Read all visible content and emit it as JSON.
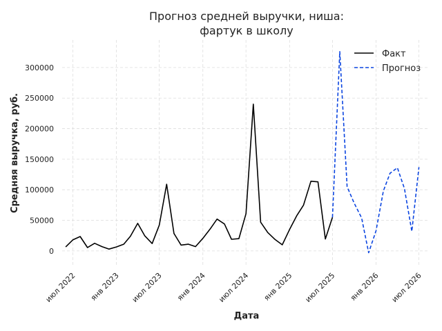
{
  "chart_data": {
    "type": "line",
    "title_lines": [
      "Прогноз средней выручки, ниша:",
      "фартук в школу"
    ],
    "xlabel": "Дата",
    "ylabel": "Средняя выручка, руб.",
    "xlim": [
      "2022-05-17",
      "2026-08-15"
    ],
    "ylim": [
      -25000,
      345000
    ],
    "yticks": [
      0,
      50000,
      100000,
      150000,
      200000,
      250000,
      300000
    ],
    "xticks": [
      {
        "date": "2022-07-01",
        "label": "июл 2022"
      },
      {
        "date": "2023-01-01",
        "label": "янв 2023"
      },
      {
        "date": "2023-07-01",
        "label": "июл 2023"
      },
      {
        "date": "2024-01-01",
        "label": "янв 2024"
      },
      {
        "date": "2024-07-01",
        "label": "июл 2024"
      },
      {
        "date": "2025-01-01",
        "label": "янв 2025"
      },
      {
        "date": "2025-07-01",
        "label": "июл 2025"
      },
      {
        "date": "2026-01-01",
        "label": "янв 2026"
      },
      {
        "date": "2026-07-01",
        "label": "июл 2026"
      }
    ],
    "grid": true,
    "legend_position": "top-right",
    "series": [
      {
        "name": "Факт",
        "color": "#000000",
        "style": "solid",
        "points": [
          [
            "2022-06-01",
            6500
          ],
          [
            "2022-07-01",
            18000
          ],
          [
            "2022-08-01",
            23500
          ],
          [
            "2022-09-01",
            5500
          ],
          [
            "2022-10-01",
            12500
          ],
          [
            "2022-11-01",
            7000
          ],
          [
            "2022-12-01",
            3000
          ],
          [
            "2023-01-01",
            6500
          ],
          [
            "2023-02-01",
            11000
          ],
          [
            "2023-03-01",
            24000
          ],
          [
            "2023-04-01",
            45000
          ],
          [
            "2023-05-01",
            24500
          ],
          [
            "2023-06-01",
            12000
          ],
          [
            "2023-07-01",
            42000
          ],
          [
            "2023-08-01",
            109000
          ],
          [
            "2023-09-01",
            28500
          ],
          [
            "2023-10-01",
            9500
          ],
          [
            "2023-11-01",
            11000
          ],
          [
            "2023-12-01",
            7000
          ],
          [
            "2024-01-01",
            20500
          ],
          [
            "2024-02-01",
            36000
          ],
          [
            "2024-03-01",
            52000
          ],
          [
            "2024-04-01",
            44000
          ],
          [
            "2024-05-01",
            19000
          ],
          [
            "2024-06-01",
            20000
          ],
          [
            "2024-07-01",
            61000
          ],
          [
            "2024-08-01",
            240000
          ],
          [
            "2024-09-01",
            47000
          ],
          [
            "2024-10-01",
            30000
          ],
          [
            "2024-11-01",
            18500
          ],
          [
            "2024-12-01",
            10000
          ],
          [
            "2025-01-01",
            35000
          ],
          [
            "2025-02-01",
            58000
          ],
          [
            "2025-03-01",
            75000
          ],
          [
            "2025-04-01",
            114000
          ],
          [
            "2025-05-01",
            113000
          ],
          [
            "2025-06-01",
            19500
          ],
          [
            "2025-07-01",
            55000
          ]
        ]
      },
      {
        "name": "Прогноз",
        "color": "#0a44e0",
        "style": "dashed",
        "points": [
          [
            "2025-07-01",
            55000
          ],
          [
            "2025-08-01",
            326000
          ],
          [
            "2025-09-01",
            105000
          ],
          [
            "2025-10-01",
            78000
          ],
          [
            "2025-11-01",
            54000
          ],
          [
            "2025-12-01",
            -3000
          ],
          [
            "2026-01-01",
            33000
          ],
          [
            "2026-02-01",
            98000
          ],
          [
            "2026-03-01",
            127000
          ],
          [
            "2026-04-01",
            136000
          ],
          [
            "2026-05-01",
            102000
          ],
          [
            "2026-06-01",
            32000
          ],
          [
            "2026-07-01",
            137000
          ]
        ]
      }
    ]
  }
}
